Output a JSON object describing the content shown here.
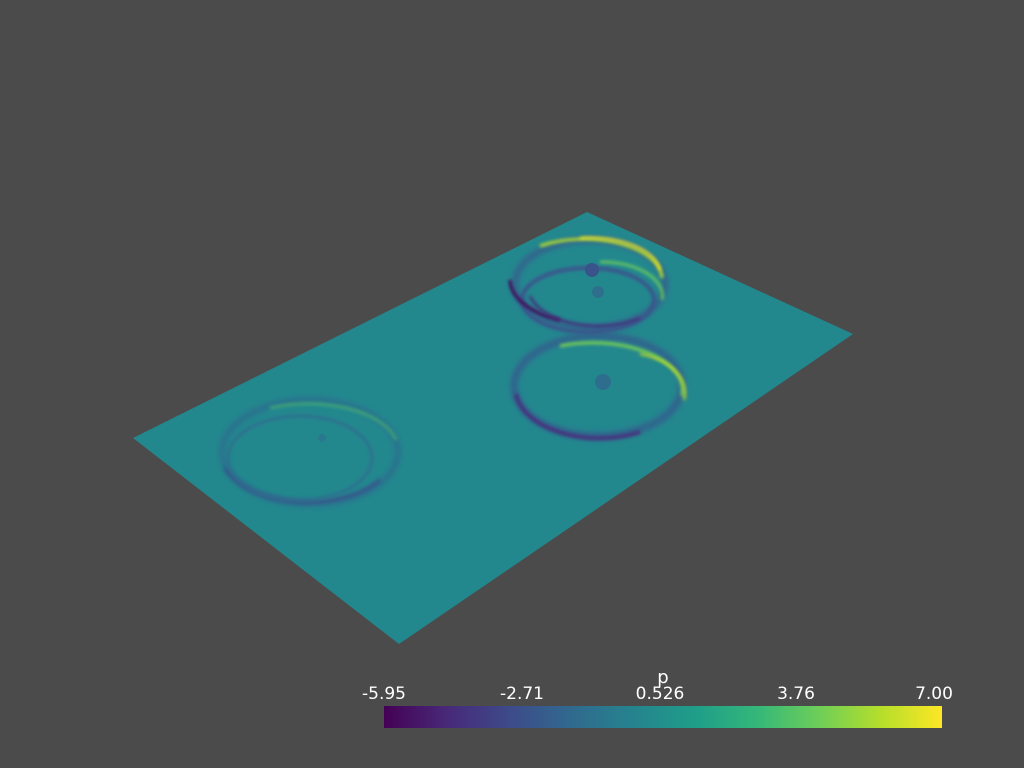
{
  "scene": {
    "background": "#4b4b4b",
    "surface_color": "#23888e",
    "colormap": "viridis",
    "ripple_sources": 4
  },
  "scalar_bar": {
    "title": "p",
    "ticks": [
      "-5.95",
      "-2.71",
      "0.526",
      "3.76",
      "7.00"
    ],
    "min": -5.95,
    "max": 7.0
  }
}
